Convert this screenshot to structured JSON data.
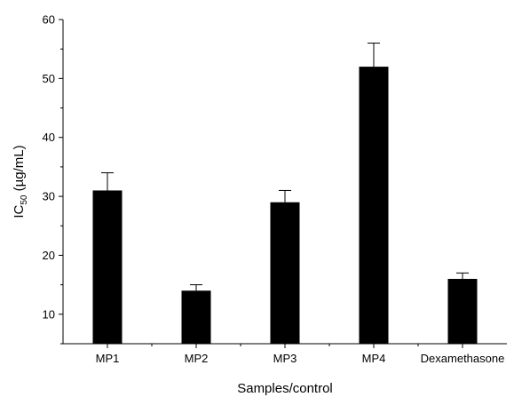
{
  "chart_data": {
    "type": "bar",
    "title": "",
    "xlabel": "Samples/control",
    "ylabel": {
      "prefix": "IC",
      "subscript": "50",
      "suffix": " (µg/mL)"
    },
    "categories": [
      "MP1",
      "MP2",
      "MP3",
      "MP4",
      "Dexamethasone"
    ],
    "values": [
      31,
      14,
      29,
      52,
      16
    ],
    "errors": [
      3,
      1,
      2,
      4,
      1
    ],
    "ylim": [
      5,
      60
    ],
    "yticks": [
      "10",
      "20",
      "30",
      "40",
      "50",
      "60"
    ],
    "bar_color": "#000000",
    "grid": false,
    "legend": "none"
  }
}
